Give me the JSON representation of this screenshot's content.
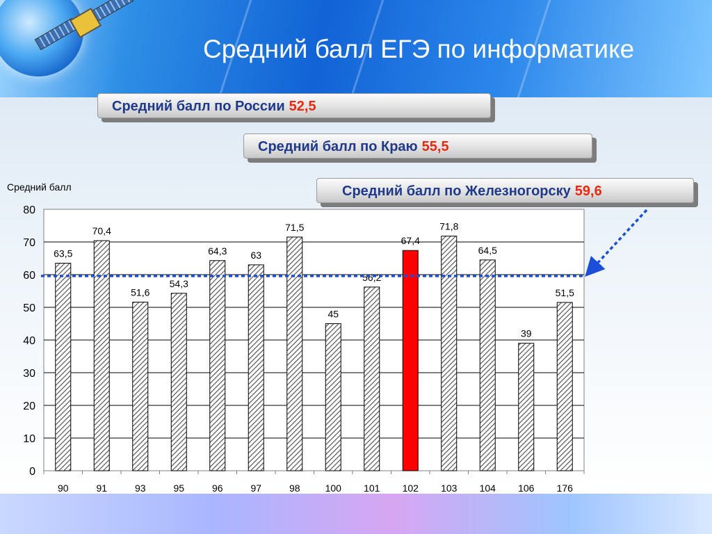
{
  "title": "Средний балл ЕГЭ по информатике",
  "badges": [
    {
      "label": "Средний балл по России",
      "value": "52,5"
    },
    {
      "label": "Средний балл по Краю",
      "value": "55,5"
    },
    {
      "label": "Средний балл по Железногорску",
      "value": "59,6"
    }
  ],
  "colors": {
    "accent": "#ff0000",
    "label_blue": "#1f3a8a",
    "value_red": "#e8280f",
    "reference_line": "#1b4fd8"
  },
  "icons": [
    "globe-icon",
    "satellite-icon"
  ],
  "chart_data": {
    "type": "bar",
    "ylabel": "Средний балл",
    "xlabel": "",
    "ylim": [
      0,
      80
    ],
    "yticks": [
      0,
      10,
      20,
      30,
      40,
      50,
      60,
      70,
      80
    ],
    "categories": [
      "90",
      "91",
      "93",
      "95",
      "96",
      "97",
      "98",
      "100",
      "101",
      "102",
      "103",
      "104",
      "106",
      "176"
    ],
    "values": [
      63.5,
      70.4,
      51.6,
      54.3,
      64.3,
      63,
      71.5,
      45,
      56.2,
      67.4,
      71.8,
      64.5,
      39,
      51.5
    ],
    "value_labels": [
      "63,5",
      "70,4",
      "51,6",
      "54,3",
      "64,3",
      "63",
      "71,5",
      "45",
      "56,2",
      "67,4",
      "71,8",
      "64,5",
      "39",
      "51,5"
    ],
    "highlight_category": "102",
    "reference_line": 59.6,
    "grid": true,
    "bar_pattern": "hatched"
  }
}
